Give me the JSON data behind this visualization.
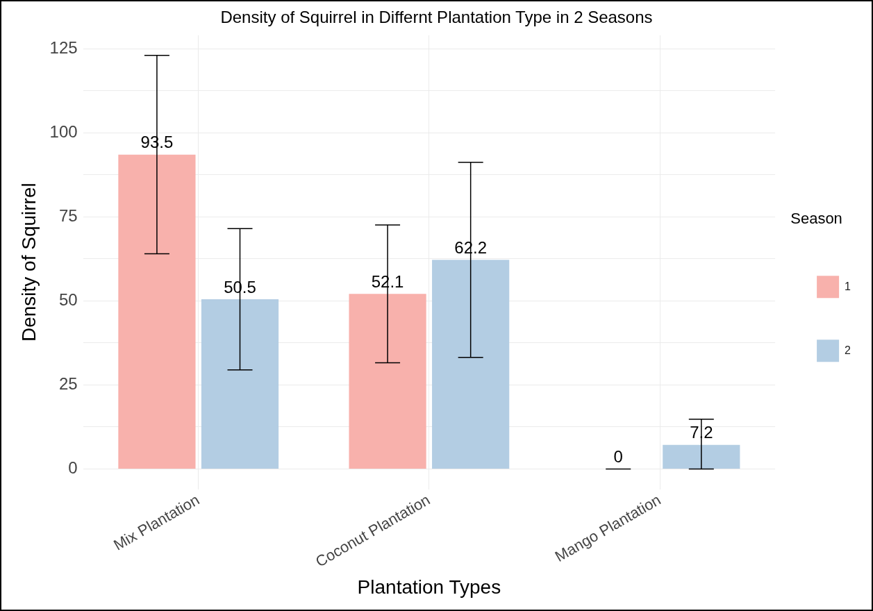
{
  "chart_data": {
    "type": "bar",
    "title": "Density of Squirrel in Differnt Plantation Type in 2 Seasons",
    "xlabel": "Plantation Types",
    "ylabel": "Density of Squirrel",
    "legend_title": "Season",
    "categories": [
      "Mix Plantation",
      "Coconut Plantation",
      "Mango Plantation"
    ],
    "series": [
      {
        "name": "1",
        "color": "#f8b1ac",
        "values": [
          93.5,
          52.1,
          0
        ],
        "errors": [
          29.5,
          20.5,
          0
        ]
      },
      {
        "name": "2",
        "color": "#b3cde3",
        "values": [
          50.5,
          62.2,
          7.2
        ],
        "errors": [
          21,
          29,
          [
            0,
            14.8
          ]
        ]
      }
    ],
    "ylim": [
      -6,
      129
    ],
    "yticks": [
      0,
      {
        "value": 12.5,
        "label": null
      },
      25,
      {
        "value": 37.5,
        "label": null
      },
      50,
      {
        "value": 62.5,
        "label": null
      },
      75,
      {
        "value": 87.5,
        "label": null
      },
      100,
      {
        "value": 112.5,
        "label": null
      },
      125
    ],
    "grid": true,
    "legend": "right",
    "data_labels": true
  }
}
